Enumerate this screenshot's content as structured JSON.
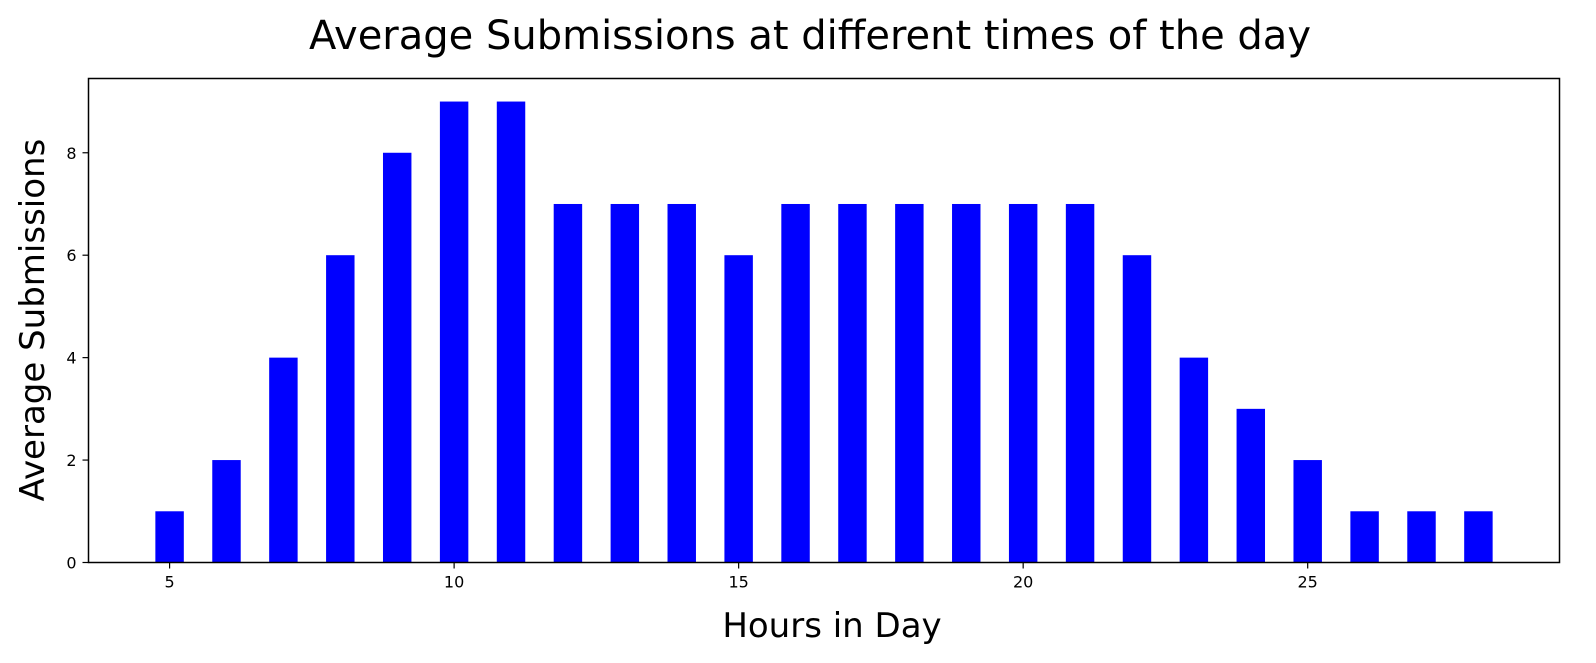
{
  "chart_data": {
    "type": "bar",
    "title": "Average Submissions at different times of the day",
    "xlabel": "Hours in Day",
    "ylabel": "Average Submissions",
    "x": [
      5,
      6,
      7,
      8,
      9,
      10,
      11,
      12,
      13,
      14,
      15,
      16,
      17,
      18,
      19,
      20,
      21,
      22,
      23,
      24,
      25,
      26,
      27,
      28
    ],
    "values": [
      1,
      2,
      4,
      6,
      8,
      9,
      9,
      7,
      7,
      7,
      6,
      7,
      7,
      7,
      7,
      7,
      7,
      6,
      4,
      3,
      2,
      1,
      1,
      1
    ],
    "xlim": [
      3.575,
      29.425
    ],
    "ylim": [
      0,
      9.45
    ],
    "xticks": [
      5,
      10,
      15,
      20,
      25
    ],
    "yticks": [
      0,
      2,
      4,
      6,
      8
    ],
    "bar_width": 0.5,
    "bar_color": "#0000ff",
    "grid": false,
    "legend": false
  }
}
